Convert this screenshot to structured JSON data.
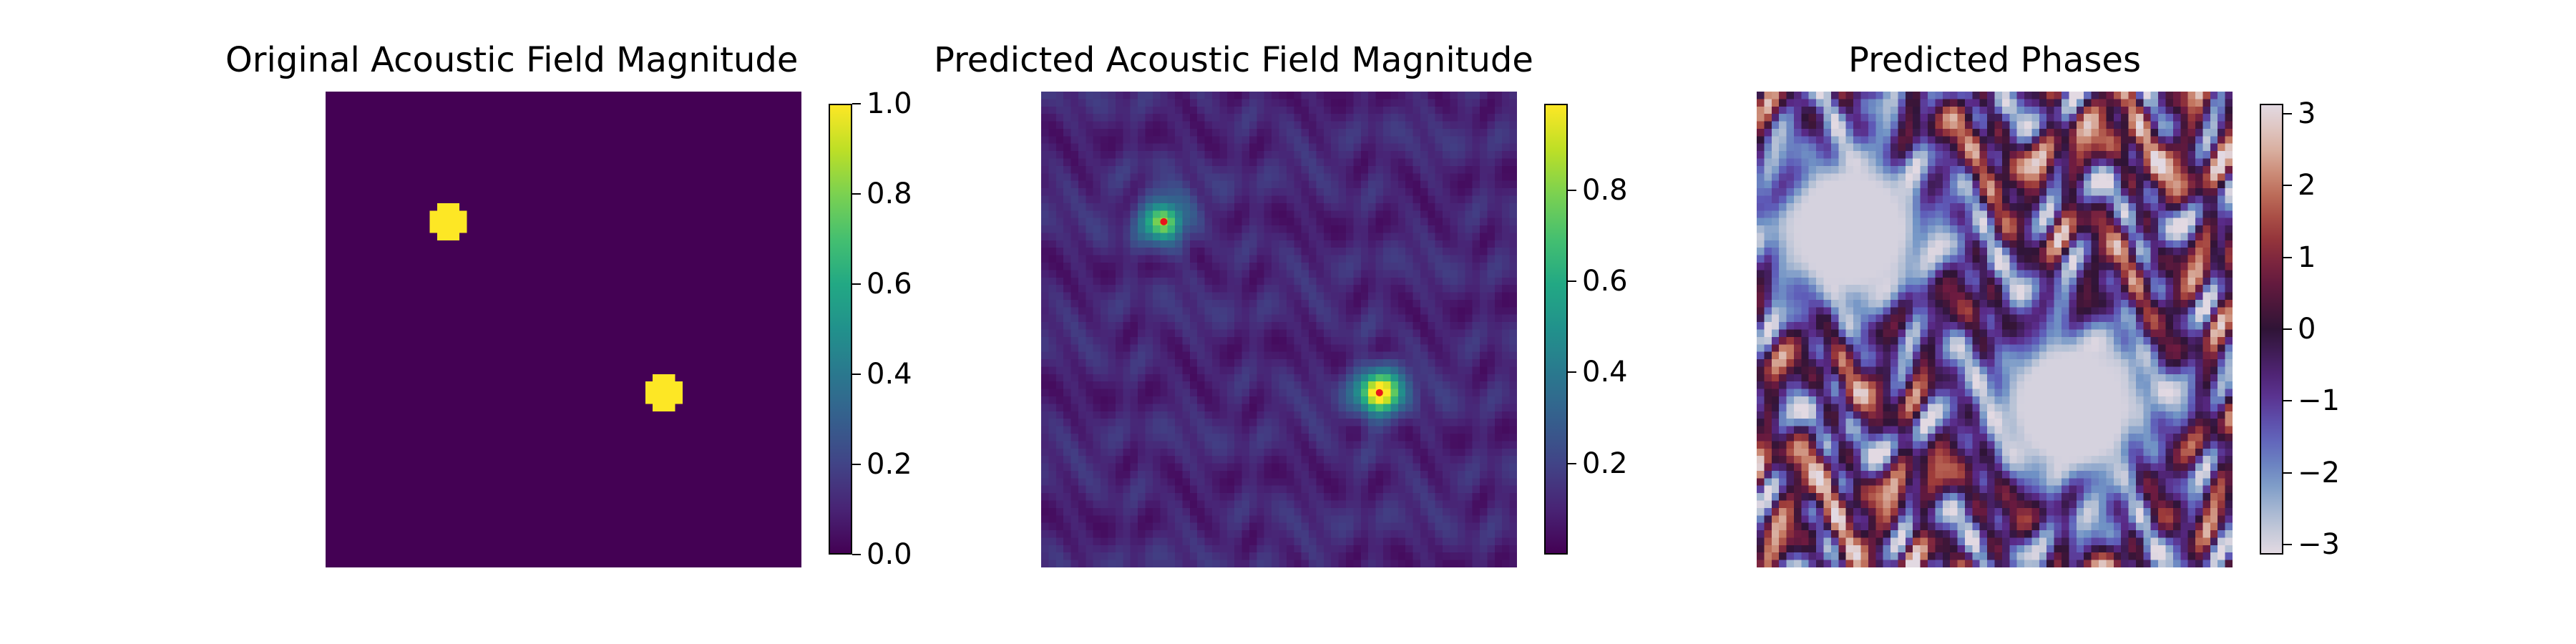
{
  "chart_data": [
    {
      "type": "heatmap",
      "title": "Original Acoustic Field Magnitude",
      "grid_size": 64,
      "colormap": "viridis",
      "vmin": 0.0,
      "vmax": 1.0,
      "colorbar_ticks": [
        "0.0",
        "0.2",
        "0.4",
        "0.6",
        "0.8",
        "1.0"
      ],
      "colorbar_tick_values": [
        0.0,
        0.2,
        0.4,
        0.6,
        0.8,
        1.0
      ],
      "foci": [
        {
          "row": 17,
          "col": 16,
          "value": 1.0,
          "radius_cells": 2.3
        },
        {
          "row": 40,
          "col": 45,
          "value": 1.0,
          "radius_cells": 2.3
        }
      ],
      "background_value": 0.0
    },
    {
      "type": "heatmap",
      "title": "Predicted Acoustic Field Magnitude",
      "grid_size": 64,
      "colormap": "viridis",
      "vmin": 0.0,
      "vmax": 0.99,
      "colorbar_ticks": [
        "0.2",
        "0.4",
        "0.6",
        "0.8"
      ],
      "colorbar_tick_values": [
        0.2,
        0.4,
        0.6,
        0.8
      ],
      "foci": [
        {
          "row": 17,
          "col": 16,
          "peak_value": 0.7
        },
        {
          "row": 40,
          "col": 45,
          "peak_value": 0.95
        }
      ],
      "focus_markers": [
        {
          "row": 17,
          "col": 16,
          "color": "#e8141b"
        },
        {
          "row": 40,
          "col": 45,
          "color": "#e8141b"
        }
      ],
      "background_range": [
        0.03,
        0.18
      ]
    },
    {
      "type": "heatmap",
      "title": "Predicted Phases",
      "grid_size": 64,
      "colormap": "twilight",
      "vmin": -3.14,
      "vmax": 3.14,
      "colorbar_ticks": [
        "−3",
        "−2",
        "−1",
        "0",
        "1",
        "2",
        "3"
      ],
      "colorbar_tick_values": [
        -3,
        -2,
        -1,
        0,
        1,
        2,
        3
      ],
      "smooth_regions": [
        {
          "row": 18,
          "col": 12,
          "value": -3.1
        },
        {
          "row": 42,
          "col": 42,
          "value": -3.1
        }
      ]
    }
  ]
}
